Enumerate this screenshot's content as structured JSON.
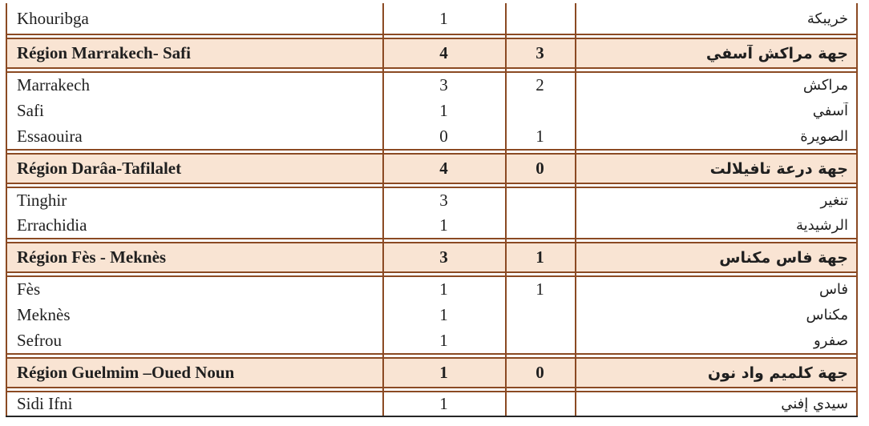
{
  "colors": {
    "border_brown": "#8b4a23",
    "region_row_shading": "#f9e4d3",
    "table_bottom_border": "#262626",
    "text": "#1f1f1f"
  },
  "table": {
    "rows": [
      {
        "type": "city",
        "fr": "Khouribga",
        "v1": "1",
        "v2": "",
        "ar": "خريبكة"
      },
      {
        "type": "region",
        "fr": "Région Marrakech- Safi",
        "v1": "4",
        "v2": "3",
        "ar": "جهة مراكش آسفي"
      },
      {
        "type": "city",
        "fr": "Marrakech",
        "v1": "3",
        "v2": "2",
        "ar": "مراكش"
      },
      {
        "type": "city",
        "fr": "Safi",
        "v1": "1",
        "v2": "",
        "ar": "آسفي"
      },
      {
        "type": "city",
        "fr": "Essaouira",
        "v1": "0",
        "v2": "1",
        "ar": "الصويرة"
      },
      {
        "type": "region",
        "fr": "Région Darâa-Tafilalet",
        "v1": "4",
        "v2": "0",
        "ar": "جهة درعة تافيلالت"
      },
      {
        "type": "city",
        "fr": "Tinghir",
        "v1": "3",
        "v2": "",
        "ar": "تنغير"
      },
      {
        "type": "city",
        "fr": "Errachidia",
        "v1": "1",
        "v2": "",
        "ar": "الرشيدية"
      },
      {
        "type": "region",
        "fr": "Région Fès - Meknès",
        "v1": "3",
        "v2": "1",
        "ar": "جهة فاس مكناس"
      },
      {
        "type": "city",
        "fr": "Fès",
        "v1": "1",
        "v2": "1",
        "ar": "فاس"
      },
      {
        "type": "city",
        "fr": "Meknès",
        "v1": "1",
        "v2": "",
        "ar": "مكناس"
      },
      {
        "type": "city",
        "fr": "Sefrou",
        "v1": "1",
        "v2": "",
        "ar": "صفرو"
      },
      {
        "type": "region",
        "fr": "Région Guelmim –Oued Noun",
        "v1": "1",
        "v2": "0",
        "ar": "جهة كلميم واد نون"
      },
      {
        "type": "city",
        "fr": "Sidi Ifni",
        "v1": "1",
        "v2": "",
        "ar": "سيدي إفني"
      }
    ]
  }
}
